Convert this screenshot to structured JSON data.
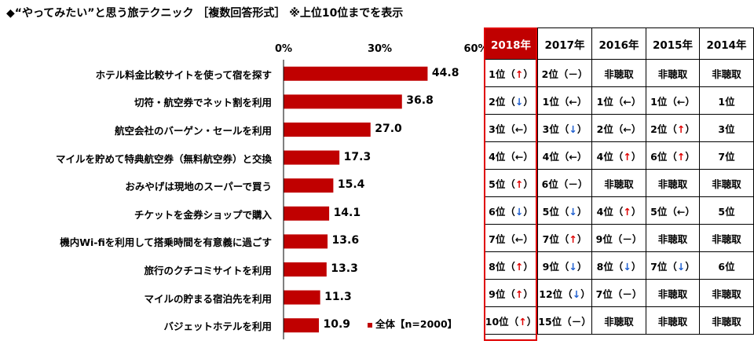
{
  "title": "◆“やってみたい”と思う旅テクニック ［複数回答形式］ ※上位10位までを表示",
  "chart_data": {
    "type": "bar",
    "orientation": "horizontal",
    "xlim": [
      0,
      60
    ],
    "ticks": [
      "0%",
      "30%",
      "60%"
    ],
    "tick_values": [
      0,
      30,
      60
    ],
    "categories": [
      "ホテル料金比較サイトを使って宿を探す",
      "切符・航空券でネット割を利用",
      "航空会社のバーゲン・セールを利用",
      "マイルを貯めて特典航空券（無料航空券）と交換",
      "おみやげは現地のスーパーで買う",
      "チケットを金券ショップで購入",
      "機内Wi-fiを利用して搭乗時間を有意義に過ごす",
      "旅行のクチコミサイトを利用",
      "マイルの貯まる宿泊先を利用",
      "バジェットホテルを利用"
    ],
    "series": [
      {
        "name": "全体【n=2000】",
        "color": "#c00000",
        "values": [
          44.8,
          36.8,
          27.0,
          17.3,
          15.4,
          14.1,
          13.6,
          13.3,
          11.3,
          10.9
        ],
        "labels": [
          "44.8",
          "36.8",
          "27.0",
          "17.3",
          "15.4",
          "14.1",
          "13.6",
          "13.3",
          "11.3",
          "10.9"
        ]
      }
    ],
    "legend": "bottom-right"
  },
  "rank_table": {
    "headers": [
      "2018年",
      "2017年",
      "2016年",
      "2015年",
      "2014年"
    ],
    "highlight_column": 0,
    "rows": [
      [
        {
          "rank": "1位",
          "arrow": "↑"
        },
        {
          "rank": "2位",
          "arrow": "－"
        },
        {
          "rank": "非聴取",
          "arrow": ""
        },
        {
          "rank": "非聴取",
          "arrow": ""
        },
        {
          "rank": "非聴取",
          "arrow": ""
        }
      ],
      [
        {
          "rank": "2位",
          "arrow": "↓"
        },
        {
          "rank": "1位",
          "arrow": "←"
        },
        {
          "rank": "1位",
          "arrow": "←"
        },
        {
          "rank": "1位",
          "arrow": "←"
        },
        {
          "rank": "1位",
          "arrow": ""
        }
      ],
      [
        {
          "rank": "3位",
          "arrow": "←"
        },
        {
          "rank": "3位",
          "arrow": "↓"
        },
        {
          "rank": "2位",
          "arrow": "←"
        },
        {
          "rank": "2位",
          "arrow": "↑"
        },
        {
          "rank": "3位",
          "arrow": ""
        }
      ],
      [
        {
          "rank": "4位",
          "arrow": "←"
        },
        {
          "rank": "4位",
          "arrow": "←"
        },
        {
          "rank": "4位",
          "arrow": "↑"
        },
        {
          "rank": "6位",
          "arrow": "↑"
        },
        {
          "rank": "7位",
          "arrow": ""
        }
      ],
      [
        {
          "rank": "5位",
          "arrow": "↑"
        },
        {
          "rank": "6位",
          "arrow": "－"
        },
        {
          "rank": "非聴取",
          "arrow": ""
        },
        {
          "rank": "非聴取",
          "arrow": ""
        },
        {
          "rank": "非聴取",
          "arrow": ""
        }
      ],
      [
        {
          "rank": "6位",
          "arrow": "↓"
        },
        {
          "rank": "5位",
          "arrow": "↓"
        },
        {
          "rank": "4位",
          "arrow": "↑"
        },
        {
          "rank": "5位",
          "arrow": "←"
        },
        {
          "rank": "5位",
          "arrow": ""
        }
      ],
      [
        {
          "rank": "7位",
          "arrow": "←"
        },
        {
          "rank": "7位",
          "arrow": "↑"
        },
        {
          "rank": "9位",
          "arrow": "－"
        },
        {
          "rank": "非聴取",
          "arrow": ""
        },
        {
          "rank": "非聴取",
          "arrow": ""
        }
      ],
      [
        {
          "rank": "8位",
          "arrow": "↑"
        },
        {
          "rank": "9位",
          "arrow": "↓"
        },
        {
          "rank": "8位",
          "arrow": "↓"
        },
        {
          "rank": "7位",
          "arrow": "↓"
        },
        {
          "rank": "6位",
          "arrow": ""
        }
      ],
      [
        {
          "rank": "9位",
          "arrow": "↑"
        },
        {
          "rank": "12位",
          "arrow": "↓"
        },
        {
          "rank": "7位",
          "arrow": "－"
        },
        {
          "rank": "非聴取",
          "arrow": ""
        },
        {
          "rank": "非聴取",
          "arrow": ""
        }
      ],
      [
        {
          "rank": "10位",
          "arrow": "↑"
        },
        {
          "rank": "15位",
          "arrow": "－"
        },
        {
          "rank": "非聴取",
          "arrow": ""
        },
        {
          "rank": "非聴取",
          "arrow": ""
        },
        {
          "rank": "非聴取",
          "arrow": ""
        }
      ]
    ]
  }
}
